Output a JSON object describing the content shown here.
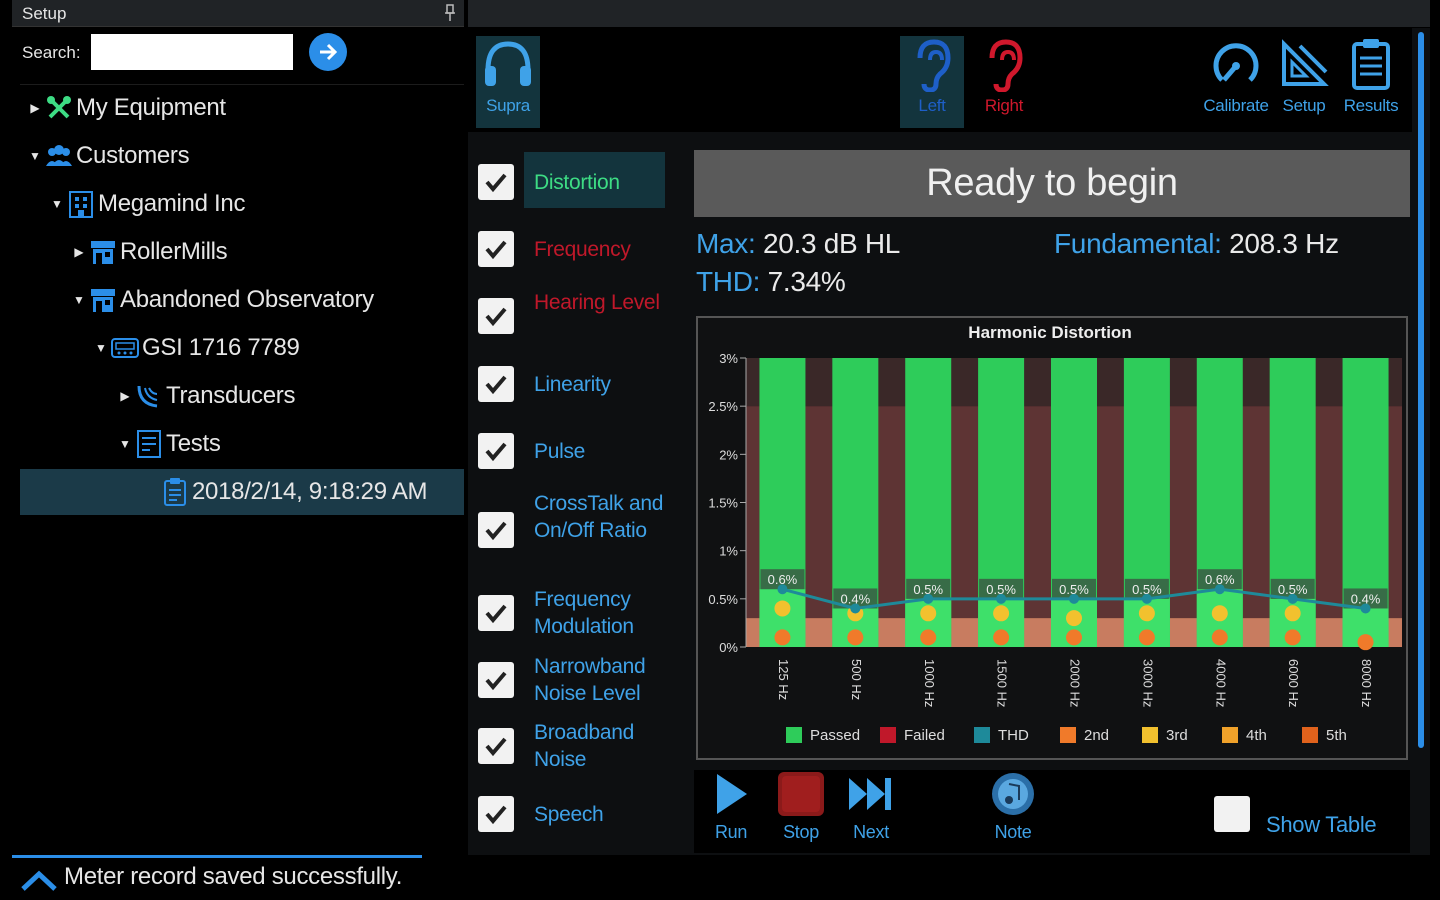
{
  "setup": {
    "title": "Setup",
    "search_label": "Search:",
    "search_value": "",
    "tree": [
      {
        "label": "My Equipment",
        "icon": "tools-icon"
      },
      {
        "label": "Customers",
        "icon": "customers-icon"
      },
      {
        "label": "Megamind Inc",
        "icon": "building-icon"
      },
      {
        "label": "RollerMills",
        "icon": "store-icon"
      },
      {
        "label": "Abandoned Observatory",
        "icon": "store-icon"
      },
      {
        "label": "GSI 1716 7789",
        "icon": "device-icon"
      },
      {
        "label": "Transducers",
        "icon": "transducer-icon"
      },
      {
        "label": "Tests",
        "icon": "tests-icon"
      },
      {
        "label": "2018/2/14, 9:18:29 AM",
        "icon": "record-icon"
      }
    ]
  },
  "status_bar": {
    "message": "Meter record saved successfully."
  },
  "toolbar": {
    "supra": "Supra",
    "left": "Left",
    "right": "Right",
    "calibrate": "Calibrate",
    "setup": "Setup",
    "results": "Results"
  },
  "tests": [
    {
      "label": "Distortion",
      "color": "#3ddc84",
      "checked": true
    },
    {
      "label": "Frequency",
      "color": "#c0182a",
      "checked": true
    },
    {
      "label": "Hearing Level",
      "color": "#c0182a",
      "checked": true
    },
    {
      "label": "Linearity",
      "color": "#3fa2e8",
      "checked": true
    },
    {
      "label": "Pulse",
      "color": "#3fa2e8",
      "checked": true
    },
    {
      "label": "CrossTalk and On/Off Ratio",
      "color": "#3fa2e8",
      "checked": true
    },
    {
      "label": "Frequency Modulation",
      "color": "#3fa2e8",
      "checked": true
    },
    {
      "label": "Narrowband Noise Level",
      "color": "#3fa2e8",
      "checked": true
    },
    {
      "label": "Broadband Noise",
      "color": "#3fa2e8",
      "checked": true
    },
    {
      "label": "Speech",
      "color": "#3fa2e8",
      "checked": true
    }
  ],
  "banner": "Ready to begin",
  "stats": {
    "max_key": "Max:",
    "max_val": "20.3 dB HL",
    "fund_key": "Fundamental:",
    "fund_val": "208.3 Hz",
    "thd_key": "THD:",
    "thd_val": "7.34%"
  },
  "bottom": {
    "run": "Run",
    "stop": "Stop",
    "next": "Next",
    "note": "Note",
    "show_table": "Show Table"
  },
  "colors": {
    "accent": "#2b8ee8",
    "passed": "#2ecc5a",
    "failed": "#c0182a",
    "thd": "#1e8a9a",
    "h2": "#f07a2a",
    "h3": "#f2c12e",
    "h4": "#f0a22a",
    "h5": "#e0621c"
  },
  "chart_data": {
    "type": "bar",
    "title": "Harmonic Distortion",
    "categories": [
      "125 Hz",
      "500 Hz",
      "1000 Hz",
      "1500 Hz",
      "2000 Hz",
      "3000 Hz",
      "4000 Hz",
      "6000 Hz",
      "8000 Hz"
    ],
    "ylim": [
      0,
      3
    ],
    "yticks": [
      "0%",
      "0.5%",
      "1%",
      "1.5%",
      "2%",
      "2.5%",
      "3%"
    ],
    "value_labels": [
      "0.6%",
      "0.4%",
      "0.5%",
      "0.5%",
      "0.5%",
      "0.5%",
      "0.6%",
      "0.5%",
      "0.4%"
    ],
    "series": [
      {
        "name": "THD",
        "values": [
          0.6,
          0.4,
          0.5,
          0.5,
          0.5,
          0.5,
          0.6,
          0.5,
          0.4
        ]
      },
      {
        "name": "2nd",
        "values": [
          0.1,
          0.1,
          0.1,
          0.1,
          0.1,
          0.1,
          0.1,
          0.1,
          0.05
        ]
      },
      {
        "name": "3rd",
        "values": [
          0.4,
          0.35,
          0.35,
          0.35,
          0.3,
          0.35,
          0.35,
          0.35,
          null
        ]
      }
    ],
    "legend": [
      "Passed",
      "Failed",
      "THD",
      "2nd",
      "3rd",
      "4th",
      "5th"
    ],
    "legend_position": "bottom"
  }
}
